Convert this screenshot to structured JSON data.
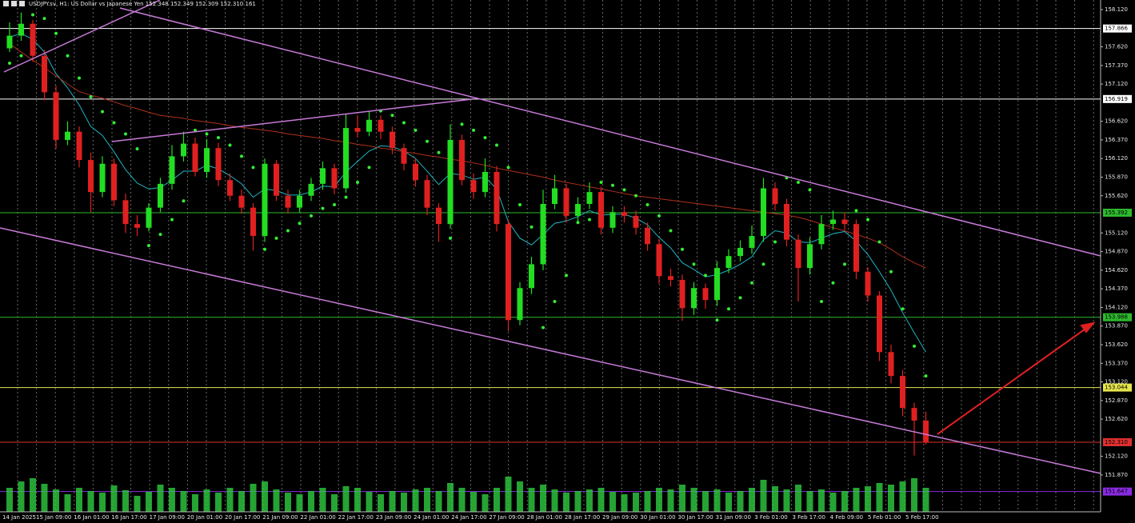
{
  "chart_data": {
    "type": "candlestick",
    "title": "USDJPY.sv, H1:  US Dollar vs Japanese Yen  152.348 152.349 152.309 152.310  161",
    "ylim": [
      151.375,
      158.249
    ],
    "yticks": [
      {
        "value": 158.12,
        "label": "158.120"
      },
      {
        "value": 157.62,
        "label": "157.620"
      },
      {
        "value": 157.37,
        "label": "157.370"
      },
      {
        "value": 157.12,
        "label": "157.120"
      },
      {
        "value": 156.62,
        "label": "156.620"
      },
      {
        "value": 156.37,
        "label": "156.370"
      },
      {
        "value": 156.12,
        "label": "156.120"
      },
      {
        "value": 155.87,
        "label": "155.870"
      },
      {
        "value": 155.62,
        "label": "155.620"
      },
      {
        "value": 155.12,
        "label": "155.120"
      },
      {
        "value": 154.87,
        "label": "154.870"
      },
      {
        "value": 154.62,
        "label": "154.620"
      },
      {
        "value": 154.37,
        "label": "154.370"
      },
      {
        "value": 154.12,
        "label": "154.120"
      },
      {
        "value": 153.87,
        "label": "153.870"
      },
      {
        "value": 153.62,
        "label": "153.620"
      },
      {
        "value": 153.37,
        "label": "153.370"
      },
      {
        "value": 153.12,
        "label": "153.120"
      },
      {
        "value": 152.87,
        "label": "152.870"
      },
      {
        "value": 152.62,
        "label": "152.620"
      },
      {
        "value": 152.12,
        "label": "152.120"
      },
      {
        "value": 151.87,
        "label": "151.870"
      }
    ],
    "levels": [
      {
        "value": 157.866,
        "label": "157.866",
        "color": "#ffffff"
      },
      {
        "value": 156.919,
        "label": "156.919",
        "color": "#ffffff"
      },
      {
        "value": 155.392,
        "label": "155.392",
        "color": "#2eb82e"
      },
      {
        "value": 153.988,
        "label": "153.988",
        "color": "#2eb82e"
      },
      {
        "value": 153.044,
        "label": "153.044",
        "color": "#e6e64c"
      },
      {
        "value": 152.31,
        "label": "152.310",
        "color": "#e03030"
      },
      {
        "value": 151.647,
        "label": "151.647",
        "color": "#8a2be2"
      }
    ],
    "time_labels": [
      "14 Jan 2025",
      "15 Jan 09:00",
      "16 Jan 01:00",
      "16 Jan 17:00",
      "17 Jan 09:00",
      "20 Jan 01:00",
      "20 Jan 17:00",
      "21 Jan 09:00",
      "22 Jan 01:00",
      "22 Jan 17:00",
      "23 Jan 09:00",
      "24 Jan 01:00",
      "24 Jan 17:00",
      "27 Jan 09:00",
      "28 Jan 01:00",
      "28 Jan 17:00",
      "29 Jan 09:00",
      "30 Jan 01:00",
      "30 Jan 17:00",
      "31 Jan 09:00",
      "3 Feb 01:00",
      "3 Feb 17:00",
      "4 Feb 09:00",
      "5 Feb 01:00",
      "5 Feb 17:00"
    ],
    "up_color": "#22dd22",
    "down_color": "#e02020",
    "candles": [
      [
        157.6,
        157.95,
        157.55,
        157.77
      ],
      [
        157.77,
        158.08,
        157.7,
        157.93
      ],
      [
        157.93,
        157.98,
        157.42,
        157.5
      ],
      [
        157.5,
        157.58,
        156.9,
        157.01
      ],
      [
        157.01,
        157.1,
        156.25,
        156.37
      ],
      [
        156.37,
        156.62,
        156.3,
        156.48
      ],
      [
        156.48,
        156.55,
        156.0,
        156.1
      ],
      [
        156.1,
        156.2,
        155.4,
        155.67
      ],
      [
        155.67,
        156.15,
        155.6,
        156.05
      ],
      [
        156.05,
        156.12,
        155.48,
        155.56
      ],
      [
        155.56,
        155.65,
        155.12,
        155.24
      ],
      [
        155.24,
        155.36,
        155.08,
        155.19
      ],
      [
        155.19,
        155.52,
        155.14,
        155.46
      ],
      [
        155.46,
        155.86,
        155.4,
        155.78
      ],
      [
        155.78,
        156.3,
        155.7,
        156.15
      ],
      [
        156.15,
        156.48,
        156.08,
        156.32
      ],
      [
        156.32,
        156.4,
        155.88,
        155.94
      ],
      [
        155.94,
        156.38,
        155.86,
        156.26
      ],
      [
        156.26,
        156.33,
        155.75,
        155.83
      ],
      [
        155.83,
        155.92,
        155.55,
        155.62
      ],
      [
        155.62,
        155.7,
        155.38,
        155.46
      ],
      [
        155.46,
        155.52,
        154.88,
        155.08
      ],
      [
        155.08,
        156.12,
        155.0,
        156.05
      ],
      [
        156.05,
        156.1,
        155.55,
        155.62
      ],
      [
        155.62,
        155.7,
        155.38,
        155.46
      ],
      [
        155.46,
        155.7,
        155.4,
        155.62
      ],
      [
        155.62,
        155.86,
        155.55,
        155.78
      ],
      [
        155.78,
        156.08,
        155.7,
        155.99
      ],
      [
        155.99,
        156.05,
        155.64,
        155.72
      ],
      [
        155.72,
        156.72,
        155.66,
        156.53
      ],
      [
        156.53,
        156.7,
        156.4,
        156.48
      ],
      [
        156.48,
        156.76,
        156.42,
        156.64
      ],
      [
        156.64,
        156.7,
        156.38,
        156.48
      ],
      [
        156.48,
        156.55,
        156.18,
        156.26
      ],
      [
        156.26,
        156.32,
        155.96,
        156.05
      ],
      [
        156.05,
        156.12,
        155.74,
        155.83
      ],
      [
        155.83,
        155.9,
        155.36,
        155.46
      ],
      [
        155.46,
        155.52,
        155.0,
        155.24
      ],
      [
        155.24,
        156.58,
        155.18,
        156.37
      ],
      [
        156.37,
        156.44,
        155.76,
        155.83
      ],
      [
        155.83,
        155.92,
        155.58,
        155.67
      ],
      [
        155.67,
        156.12,
        155.6,
        155.94
      ],
      [
        155.94,
        156.02,
        155.14,
        155.24
      ],
      [
        155.24,
        155.3,
        153.8,
        153.95
      ],
      [
        153.95,
        154.46,
        153.88,
        154.38
      ],
      [
        154.38,
        154.8,
        154.3,
        154.7
      ],
      [
        154.7,
        155.7,
        154.62,
        155.51
      ],
      [
        155.51,
        155.9,
        155.44,
        155.72
      ],
      [
        155.72,
        155.78,
        155.26,
        155.35
      ],
      [
        155.35,
        155.6,
        155.28,
        155.51
      ],
      [
        155.51,
        155.8,
        155.44,
        155.67
      ],
      [
        155.67,
        155.74,
        155.1,
        155.19
      ],
      [
        155.19,
        155.48,
        155.12,
        155.4
      ],
      [
        155.4,
        155.48,
        155.26,
        155.35
      ],
      [
        155.35,
        155.42,
        155.1,
        155.19
      ],
      [
        155.19,
        155.26,
        154.88,
        154.97
      ],
      [
        154.97,
        155.04,
        154.44,
        154.54
      ],
      [
        154.54,
        154.64,
        154.4,
        154.49
      ],
      [
        154.49,
        154.56,
        153.94,
        154.11
      ],
      [
        154.11,
        154.46,
        154.02,
        154.38
      ],
      [
        154.38,
        154.44,
        154.1,
        154.22
      ],
      [
        154.22,
        154.74,
        154.14,
        154.65
      ],
      [
        154.65,
        154.9,
        154.58,
        154.81
      ],
      [
        154.81,
        155.02,
        154.74,
        154.92
      ],
      [
        154.92,
        155.22,
        154.84,
        155.08
      ],
      [
        155.08,
        155.86,
        155.0,
        155.72
      ],
      [
        155.72,
        155.8,
        155.42,
        155.51
      ],
      [
        155.51,
        155.58,
        154.94,
        155.03
      ],
      [
        155.03,
        155.1,
        154.2,
        154.65
      ],
      [
        154.65,
        155.06,
        154.56,
        154.97
      ],
      [
        154.97,
        155.36,
        154.9,
        155.24
      ],
      [
        155.24,
        155.42,
        155.16,
        155.3
      ],
      [
        155.3,
        155.4,
        155.16,
        155.24
      ],
      [
        155.24,
        155.3,
        154.5,
        154.6
      ],
      [
        154.6,
        154.66,
        154.2,
        154.28
      ],
      [
        154.28,
        154.34,
        153.4,
        153.52
      ],
      [
        153.52,
        153.62,
        153.1,
        153.2
      ],
      [
        153.2,
        153.28,
        152.66,
        152.77
      ],
      [
        152.77,
        152.84,
        152.13,
        152.6
      ],
      [
        152.6,
        152.72,
        152.28,
        152.31
      ]
    ],
    "series": [
      {
        "color": "#1fb5c4",
        "values": [
          157.75,
          157.8,
          157.72,
          157.55,
          157.26,
          157.07,
          156.84,
          156.55,
          156.43,
          156.21,
          155.97,
          155.79,
          155.71,
          155.73,
          155.83,
          155.95,
          155.95,
          156.03,
          155.98,
          155.89,
          155.78,
          155.6,
          155.71,
          155.69,
          155.63,
          155.63,
          155.67,
          155.75,
          155.74,
          155.94,
          156.08,
          156.22,
          156.29,
          156.28,
          156.22,
          156.12,
          155.95,
          155.77,
          155.92,
          155.9,
          155.84,
          155.87,
          155.71,
          155.27,
          155.05,
          154.96,
          155.1,
          155.25,
          155.28,
          155.34,
          155.42,
          155.36,
          155.37,
          155.37,
          155.32,
          155.23,
          155.06,
          154.92,
          154.72,
          154.63,
          154.53,
          154.56,
          154.62,
          154.7,
          154.8,
          155.03,
          155.15,
          155.12,
          155.0,
          154.99,
          155.05,
          155.11,
          155.14,
          155.01,
          154.83,
          154.6,
          154.35,
          154.05,
          153.78,
          153.52
        ]
      },
      {
        "color": "#b0301c",
        "values": [
          157.66,
          157.55,
          157.44,
          157.34,
          157.23,
          157.12,
          157.02,
          156.97,
          156.93,
          156.88,
          156.83,
          156.79,
          156.74,
          156.7,
          156.68,
          156.66,
          156.63,
          156.61,
          156.59,
          156.56,
          156.54,
          156.52,
          156.5,
          156.48,
          156.45,
          156.43,
          156.41,
          156.39,
          156.36,
          156.34,
          156.31,
          156.29,
          156.26,
          156.24,
          156.21,
          156.19,
          156.16,
          156.14,
          156.11,
          156.09,
          156.06,
          156.03,
          155.99,
          155.96,
          155.93,
          155.9,
          155.87,
          155.83,
          155.8,
          155.77,
          155.74,
          155.71,
          155.68,
          155.65,
          155.62,
          155.6,
          155.58,
          155.56,
          155.54,
          155.52,
          155.5,
          155.48,
          155.46,
          155.44,
          155.42,
          155.4,
          155.38,
          155.36,
          155.33,
          155.29,
          155.24,
          155.19,
          155.15,
          155.1,
          155.05,
          154.99,
          154.9,
          154.8,
          154.72,
          154.65
        ]
      }
    ],
    "sar": {
      "color": "#33ee33",
      "values": [
        157.4,
        157.5,
        158.05,
        158.0,
        157.8,
        157.5,
        157.2,
        156.95,
        156.75,
        156.6,
        156.45,
        156.25,
        154.95,
        155.1,
        155.3,
        155.55,
        156.5,
        156.45,
        156.4,
        156.3,
        156.15,
        156.0,
        154.9,
        155.05,
        155.15,
        155.25,
        155.35,
        155.45,
        155.5,
        155.6,
        155.8,
        156.0,
        156.76,
        156.7,
        156.6,
        156.5,
        156.35,
        156.2,
        155.05,
        156.58,
        156.5,
        156.4,
        156.3,
        156.0,
        155.5,
        155.2,
        153.85,
        154.2,
        154.55,
        155.26,
        155.3,
        155.8,
        155.76,
        155.7,
        155.62,
        155.5,
        155.35,
        155.15,
        154.9,
        154.7,
        154.55,
        153.95,
        154.1,
        154.25,
        154.45,
        154.7,
        155.0,
        155.86,
        155.8,
        155.7,
        154.2,
        154.45,
        154.7,
        155.42,
        155.3,
        155.0,
        154.6,
        154.1,
        153.6,
        153.2
      ]
    },
    "volume": {
      "color": "#2ecc40",
      "values": [
        30,
        38,
        42,
        35,
        28,
        22,
        30,
        26,
        24,
        33,
        27,
        20,
        25,
        34,
        30,
        26,
        22,
        28,
        24,
        30,
        26,
        35,
        38,
        28,
        24,
        22,
        26,
        30,
        22,
        32,
        30,
        25,
        22,
        26,
        24,
        28,
        30,
        26,
        36,
        30,
        25,
        22,
        30,
        44,
        38,
        30,
        34,
        28,
        24,
        26,
        28,
        30,
        25,
        22,
        24,
        26,
        30,
        28,
        34,
        30,
        26,
        28,
        24,
        26,
        30,
        40,
        32,
        28,
        34,
        26,
        28,
        24,
        26,
        30,
        32,
        36,
        34,
        38,
        42,
        30
      ]
    }
  }
}
